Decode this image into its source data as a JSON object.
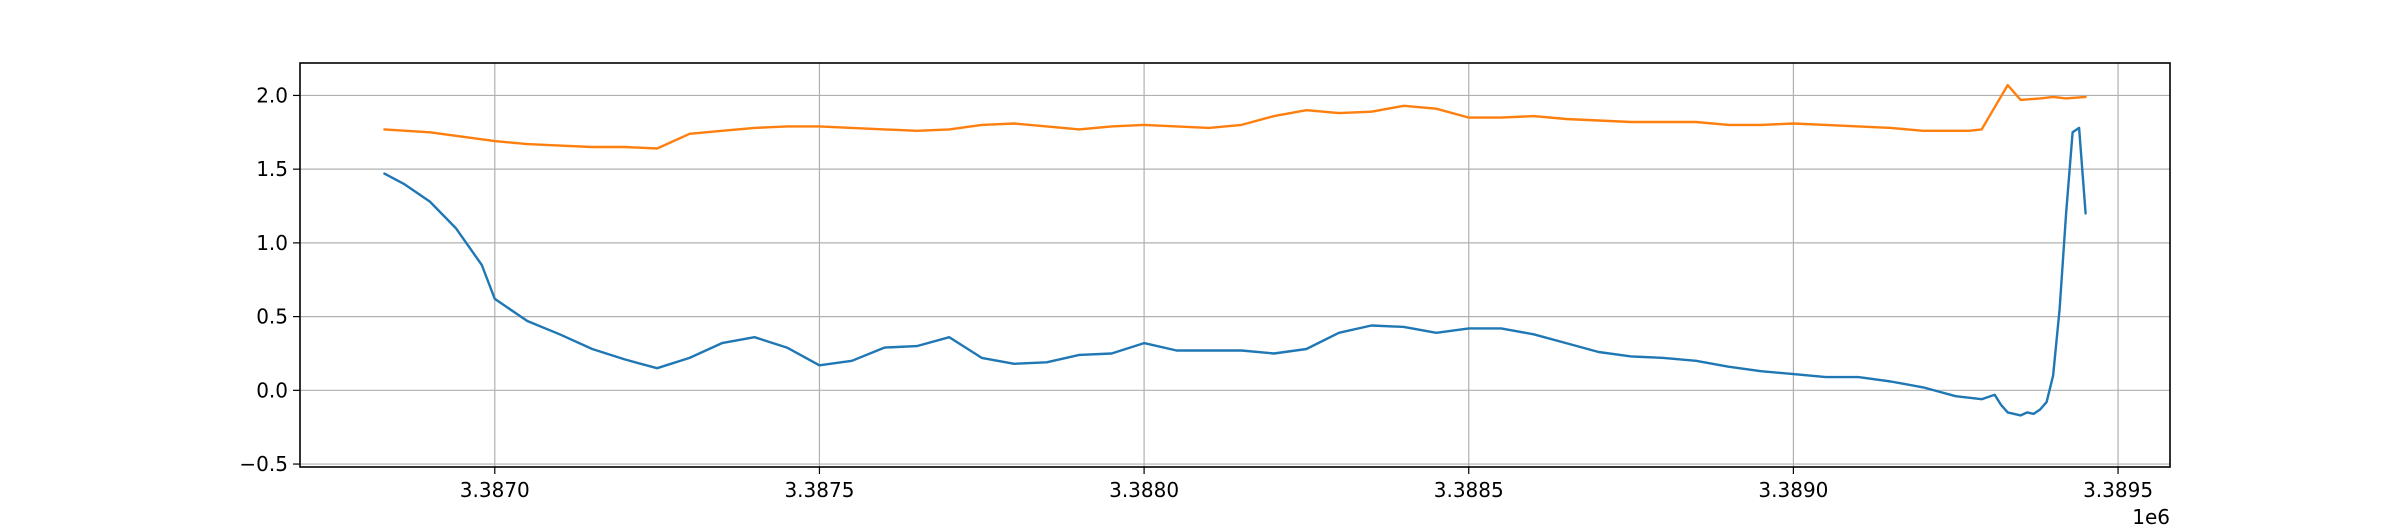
{
  "chart_data": {
    "type": "line",
    "title": "",
    "xlabel": "",
    "ylabel": "",
    "x_offset_label": "1e6",
    "xlim": [
      3386700,
      3389580
    ],
    "ylim": [
      -0.52,
      2.22
    ],
    "grid": true,
    "x_ticks": [
      3387000,
      3387500,
      3388000,
      3388500,
      3389000,
      3389500
    ],
    "x_tick_labels": [
      "3.3870",
      "3.3875",
      "3.3880",
      "3.3885",
      "3.3890",
      "3.3895"
    ],
    "y_ticks": [
      -0.5,
      0.0,
      0.5,
      1.0,
      1.5,
      2.0
    ],
    "y_tick_labels": [
      "−0.5",
      "0.0",
      "0.5",
      "1.0",
      "1.5",
      "2.0"
    ],
    "series": [
      {
        "color": "#1f77b4",
        "x": [
          3386830,
          3386860,
          3386900,
          3386940,
          3386980,
          3387000,
          3387050,
          3387100,
          3387150,
          3387200,
          3387250,
          3387300,
          3387350,
          3387400,
          3387450,
          3387500,
          3387550,
          3387600,
          3387650,
          3387700,
          3387750,
          3387800,
          3387850,
          3387900,
          3387950,
          3388000,
          3388050,
          3388100,
          3388150,
          3388200,
          3388250,
          3388300,
          3388350,
          3388400,
          3388450,
          3388500,
          3388550,
          3388600,
          3388650,
          3388700,
          3388750,
          3388800,
          3388850,
          3388900,
          3388950,
          3389000,
          3389050,
          3389100,
          3389150,
          3389200,
          3389250,
          3389270,
          3389290,
          3389310,
          3389320,
          3389330,
          3389340,
          3389350,
          3389360,
          3389370,
          3389380,
          3389390,
          3389400,
          3389410,
          3389420,
          3389430,
          3389440,
          3389450
        ],
        "y": [
          1.47,
          1.4,
          1.28,
          1.1,
          0.85,
          0.62,
          0.47,
          0.38,
          0.28,
          0.21,
          0.15,
          0.22,
          0.32,
          0.36,
          0.29,
          0.17,
          0.2,
          0.29,
          0.3,
          0.36,
          0.22,
          0.18,
          0.19,
          0.24,
          0.25,
          0.32,
          0.27,
          0.27,
          0.27,
          0.25,
          0.28,
          0.39,
          0.44,
          0.43,
          0.39,
          0.42,
          0.42,
          0.38,
          0.32,
          0.26,
          0.23,
          0.22,
          0.2,
          0.16,
          0.13,
          0.11,
          0.09,
          0.09,
          0.06,
          0.02,
          -0.04,
          -0.05,
          -0.06,
          -0.03,
          -0.1,
          -0.15,
          -0.16,
          -0.17,
          -0.15,
          -0.16,
          -0.13,
          -0.08,
          0.1,
          0.55,
          1.2,
          1.75,
          1.78,
          1.2
        ]
      },
      {
        "color": "#ff7f0e",
        "x": [
          3386830,
          3386900,
          3386950,
          3387000,
          3387050,
          3387100,
          3387150,
          3387200,
          3387250,
          3387300,
          3387350,
          3387400,
          3387450,
          3387500,
          3387550,
          3387600,
          3387650,
          3387700,
          3387750,
          3387800,
          3387850,
          3387900,
          3387950,
          3388000,
          3388050,
          3388100,
          3388150,
          3388200,
          3388250,
          3388300,
          3388350,
          3388400,
          3388450,
          3388500,
          3388550,
          3388600,
          3388650,
          3388700,
          3388750,
          3388800,
          3388850,
          3388900,
          3388950,
          3389000,
          3389050,
          3389100,
          3389150,
          3389200,
          3389250,
          3389270,
          3389290,
          3389310,
          3389330,
          3389350,
          3389380,
          3389400,
          3389420,
          3389450
        ],
        "y": [
          1.77,
          1.75,
          1.72,
          1.69,
          1.67,
          1.66,
          1.65,
          1.65,
          1.64,
          1.74,
          1.76,
          1.78,
          1.79,
          1.79,
          1.78,
          1.77,
          1.76,
          1.77,
          1.8,
          1.81,
          1.79,
          1.77,
          1.79,
          1.8,
          1.79,
          1.78,
          1.8,
          1.86,
          1.9,
          1.88,
          1.89,
          1.93,
          1.91,
          1.85,
          1.85,
          1.86,
          1.84,
          1.83,
          1.82,
          1.82,
          1.82,
          1.8,
          1.8,
          1.81,
          1.8,
          1.79,
          1.78,
          1.76,
          1.76,
          1.76,
          1.77,
          1.92,
          2.07,
          1.97,
          1.98,
          1.99,
          1.98,
          1.99
        ]
      }
    ]
  }
}
